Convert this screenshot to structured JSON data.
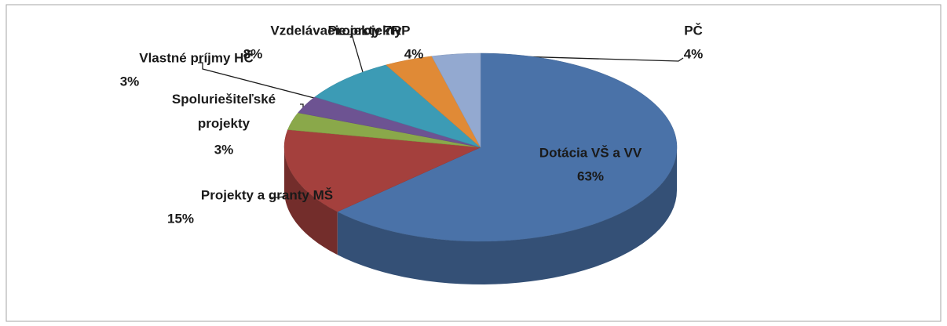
{
  "chart_data": {
    "type": "pie3d",
    "categories": [
      "Dotácia VŠ a VV",
      "Projekty a granty MŠ",
      "Spoluriešiteľské projekty",
      "Vlastné príjmy HČ",
      "Vzdelávacie projekty",
      "Projekty 7RP",
      "PČ"
    ],
    "values": [
      63,
      15,
      3,
      3,
      8,
      4,
      4
    ],
    "value_labels": [
      "63%",
      "15%",
      "3%",
      "3%",
      "8%",
      "4%",
      "4%"
    ],
    "colors": [
      "#4a72a8",
      "#a4403d",
      "#8aa84a",
      "#6d5392",
      "#3c9bb5",
      "#e08a36",
      "#93a9d0"
    ]
  }
}
